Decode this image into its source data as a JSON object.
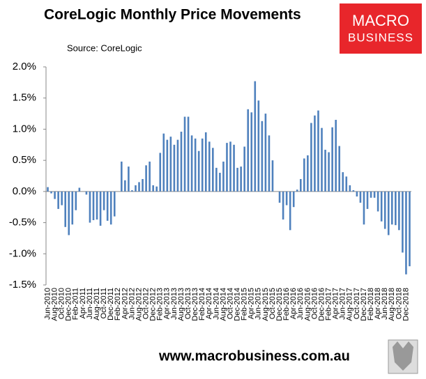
{
  "chart_data": {
    "type": "bar",
    "title": "CoreLogic Monthly Price Movements",
    "subtitle": "Source: CoreLogic",
    "categories": [
      "Jun-2010",
      null,
      "Aug-2010",
      null,
      "Oct-2010",
      null,
      "Dec-2010",
      null,
      "Feb-2011",
      null,
      "Apr-2011",
      null,
      "Jun-2011",
      null,
      "Aug-2011",
      null,
      "Oct-2011",
      null,
      "Dec-2011",
      null,
      "Feb-2012",
      null,
      "Apr-2012",
      null,
      "Jun-2012",
      null,
      "Aug-2012",
      null,
      "Oct-2012",
      null,
      "Dec-2012",
      null,
      "Feb-2013",
      null,
      "Apr-2013",
      null,
      "Jun-2013",
      null,
      "Aug-2013",
      null,
      "Oct-2013",
      null,
      "Dec-2013",
      null,
      "Feb-2014",
      null,
      "Apr-2014",
      null,
      "Jun-2014",
      null,
      "Aug-2014",
      null,
      "Oct-2014",
      null,
      "Dec-2014",
      null,
      "Feb-2015",
      null,
      "Apr-2015",
      null,
      "Jun-2015",
      null,
      "Aug-2015",
      null,
      "Oct-2015",
      null,
      "Dec-2015",
      null,
      "Feb-2016",
      null,
      "Apr-2016",
      null,
      "Jun-2016",
      null,
      "Aug-2016",
      null,
      "Oct-2016",
      null,
      "Dec-2016",
      null,
      "Feb-2017",
      null,
      "Apr-2017",
      null,
      "Jun-2017",
      null,
      "Aug-2017",
      null,
      "Oct-2017",
      null,
      "Dec-2017",
      null,
      "Feb-2018",
      null,
      "Apr-2018",
      null,
      "Jun-2018",
      null,
      "Aug-2018",
      null,
      "Oct-2018",
      null,
      "Dec-2018",
      null
    ],
    "values": [
      0.07,
      -0.03,
      -0.12,
      -0.28,
      -0.22,
      -0.57,
      -0.7,
      -0.53,
      -0.3,
      0.06,
      0.0,
      -0.05,
      -0.5,
      -0.46,
      -0.45,
      -0.55,
      -0.3,
      -0.47,
      -0.53,
      -0.4,
      0.0,
      0.48,
      0.18,
      0.4,
      0.02,
      0.1,
      0.15,
      0.2,
      0.42,
      0.48,
      0.1,
      0.08,
      0.62,
      0.93,
      0.83,
      0.88,
      0.75,
      0.83,
      0.96,
      1.2,
      1.2,
      0.9,
      0.85,
      0.65,
      0.85,
      0.95,
      0.8,
      0.7,
      0.38,
      0.3,
      0.48,
      0.78,
      0.8,
      0.75,
      0.38,
      0.4,
      0.72,
      1.32,
      1.27,
      1.77,
      1.46,
      1.13,
      1.25,
      0.9,
      0.5,
      0.0,
      -0.18,
      -0.45,
      -0.22,
      -0.62,
      -0.25,
      0.03,
      0.2,
      0.53,
      0.58,
      1.1,
      1.22,
      1.3,
      1.02,
      0.67,
      0.63,
      1.03,
      1.15,
      0.73,
      0.31,
      0.24,
      0.1,
      0.02,
      -0.08,
      -0.18,
      -0.53,
      -0.28,
      -0.1,
      -0.1,
      -0.32,
      -0.48,
      -0.6,
      -0.7,
      -0.53,
      -0.54,
      -0.62,
      -0.98,
      -1.33,
      -1.2
    ],
    "color": "#4f81bd",
    "ylim": [
      -1.5,
      2
    ],
    "yticks": [
      {
        "value": -1.5,
        "label": "-1.5%"
      },
      {
        "value": -1,
        "label": "-1.0%"
      },
      {
        "value": -0.5,
        "label": "-0.5%"
      },
      {
        "value": 0,
        "label": "0.0%"
      },
      {
        "value": 0.5,
        "label": "0.5%"
      },
      {
        "value": 1,
        "label": "1.0%"
      },
      {
        "value": 1.5,
        "label": "1.5%"
      },
      {
        "value": 2,
        "label": "2.0%"
      }
    ],
    "grid": false
  },
  "logo": {
    "line1": "MACRO",
    "line2": "BUSINESS"
  },
  "footer": "www.macrobusiness.com.au"
}
